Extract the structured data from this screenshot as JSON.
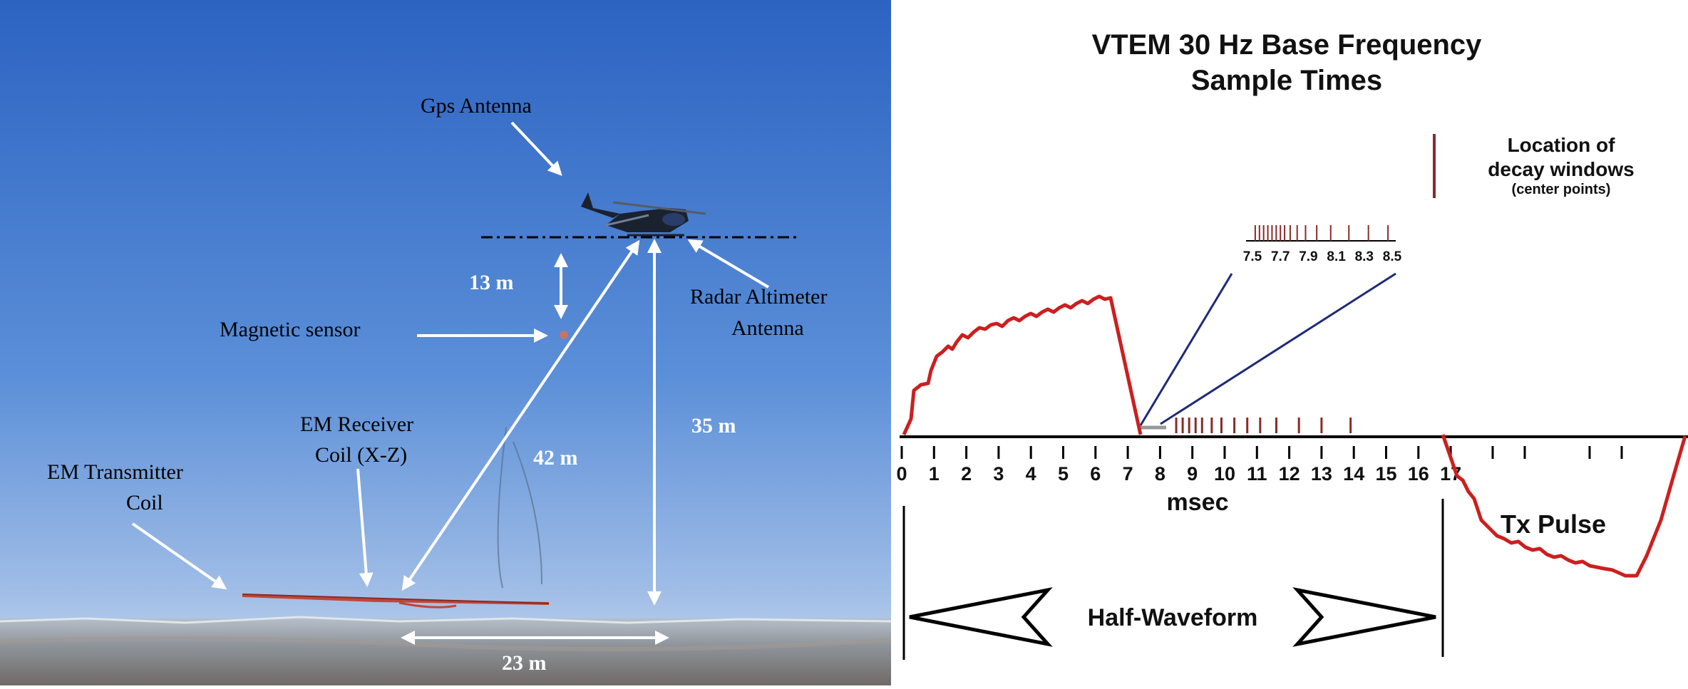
{
  "photo": {
    "labels": {
      "gps": "Gps Antenna",
      "radar_line1": "Radar Altimeter",
      "radar_line2": "Antenna",
      "mag_sensor": "Magnetic sensor",
      "receiver_line1": "EM Receiver",
      "receiver_line2": "Coil (X-Z)",
      "transmitter_line1": "EM Transmitter",
      "transmitter_line2": "Coil"
    },
    "distances": {
      "mag_offset": "13 m",
      "slant": "42 m",
      "vertical": "35 m",
      "horizontal": "23 m"
    },
    "colors": {
      "sky_top": "#2f66c4",
      "sky_bottom": "#a9c4e8",
      "arrow": "#ffffff",
      "loop": "#c0463a"
    }
  },
  "waveform": {
    "title_line1": "VTEM 30 Hz Base Frequency",
    "title_line2": "Sample Times",
    "legend_line1": "Location of",
    "legend_line2": "decay windows",
    "legend_line3": "(center points)",
    "axis_label": "msec",
    "axis_ticks": [
      "0",
      "1",
      "2",
      "3",
      "4",
      "5",
      "6",
      "7",
      "8",
      "9",
      "10",
      "11",
      "12",
      "13",
      "14",
      "15",
      "16",
      "17"
    ],
    "inset_ticks": [
      "7.5",
      "7.7",
      "7.9",
      "8.1",
      "8.3",
      "8.5"
    ],
    "half_waveform_label": "Half-Waveform",
    "tx_pulse_label": "Tx Pulse",
    "colors": {
      "waveform": "#cc1f1f",
      "window_marks": "#8b2a2a",
      "zoom_lines": "#1e2a78"
    }
  }
}
